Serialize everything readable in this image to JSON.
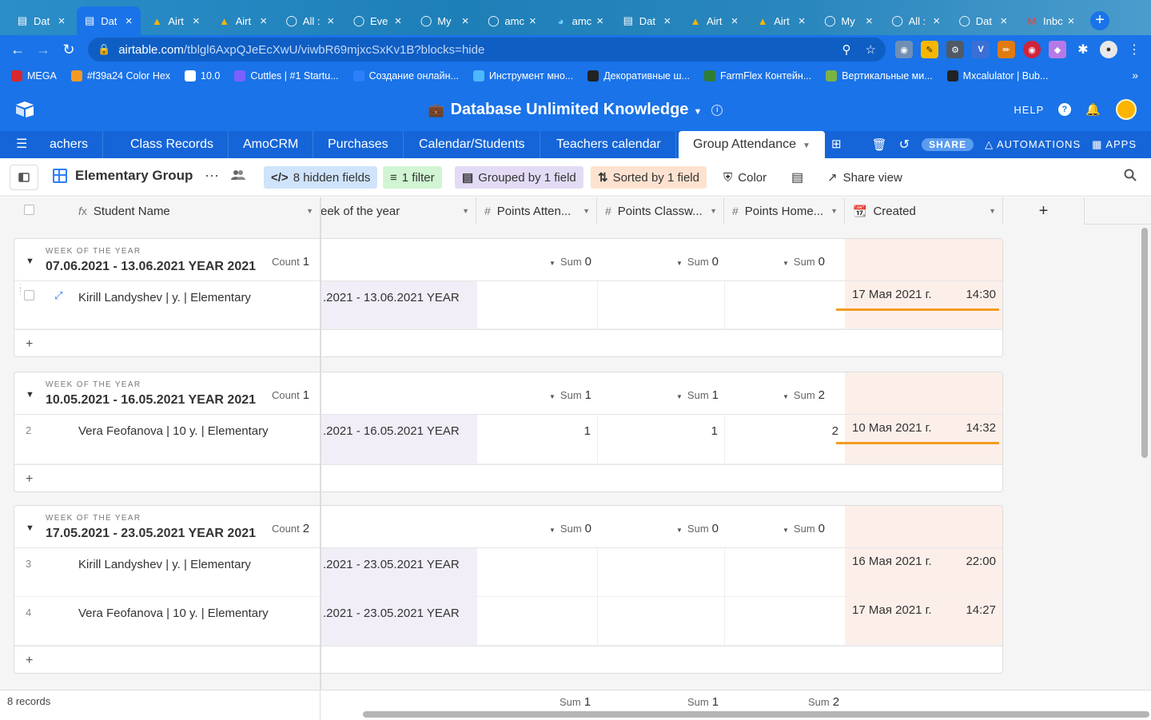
{
  "browser": {
    "tabs": [
      {
        "title": "Dat",
        "icon": "airtable-grid-icon",
        "active": false
      },
      {
        "title": "Dat",
        "icon": "airtable-grid-icon",
        "active": true
      },
      {
        "title": "Airt",
        "icon": "airtable-logo-icon",
        "active": false
      },
      {
        "title": "Airt",
        "icon": "airtable-logo-icon",
        "active": false
      },
      {
        "title": "All :",
        "icon": "loading-spinner-icon",
        "active": false
      },
      {
        "title": "Eve",
        "icon": "loading-spinner-icon",
        "active": false
      },
      {
        "title": "My",
        "icon": "loading-spinner-icon",
        "active": false
      },
      {
        "title": "amc",
        "icon": "loading-spinner-icon",
        "active": false
      },
      {
        "title": "amc",
        "icon": "amocrm-icon",
        "active": false
      },
      {
        "title": "Dat",
        "icon": "airtable-grid-icon",
        "active": false
      },
      {
        "title": "Airt",
        "icon": "airtable-logo-icon",
        "active": false
      },
      {
        "title": "Airt",
        "icon": "airtable-logo-icon",
        "active": false
      },
      {
        "title": "My",
        "icon": "loading-spinner-icon",
        "active": false
      },
      {
        "title": "All :",
        "icon": "loading-spinner-icon",
        "active": false
      },
      {
        "title": "Dat",
        "icon": "loading-spinner-icon",
        "active": false
      },
      {
        "title": "Inbc",
        "icon": "gmail-icon",
        "active": false
      }
    ],
    "url_host": "airtable.com",
    "url_path": "/tblgl6AxpQJeEcXwU/viwbR69mjxcSxKv1B?blocks=hide",
    "bookmarks": [
      {
        "label": "MEGA",
        "icon": "mega-icon",
        "color": "#d9272e"
      },
      {
        "label": "#f39a24 Color Hex",
        "icon": "color-hex-icon",
        "color": "#f39a24"
      },
      {
        "label": "10.0",
        "icon": "globe-icon",
        "color": "#ffffff"
      },
      {
        "label": "Cuttles | #1 Startu...",
        "icon": "cuttles-icon",
        "color": "#7b61ff"
      },
      {
        "label": "Создание онлайн...",
        "icon": "spinner-icon",
        "color": "#2d7ff9"
      },
      {
        "label": "Инструмент мно...",
        "icon": "tool-icon",
        "color": "#4db8ff"
      },
      {
        "label": "Декоративные ш...",
        "icon": "decor-icon",
        "color": "#222222"
      },
      {
        "label": "FarmFlex Контейн...",
        "icon": "farmflex-icon",
        "color": "#2e7d32"
      },
      {
        "label": "Вертикальные ми...",
        "icon": "leaf-icon",
        "color": "#7cb342"
      },
      {
        "label": "Mxcalulator | Bub...",
        "icon": "b-icon",
        "color": "#222222"
      }
    ]
  },
  "app": {
    "base_title": "Database Unlimited Knowledge",
    "help_label": "HELP",
    "tables": [
      {
        "label": "achers"
      },
      {
        "label": "Class Records"
      },
      {
        "label": "AmoCRM"
      },
      {
        "label": "Purchases"
      },
      {
        "label": "Calendar/Students"
      },
      {
        "label": "Teachers calendar"
      },
      {
        "label": "Group Attendance"
      }
    ],
    "share_label": "SHARE",
    "automations_label": "AUTOMATIONS",
    "apps_label": "APPS"
  },
  "viewbar": {
    "view_name": "Elementary Group",
    "hidden_fields": "8 hidden fields",
    "filter": "1 filter",
    "grouped": "Grouped by 1 field",
    "sorted": "Sorted by 1 field",
    "color": "Color",
    "share_view": "Share view",
    "colors": {
      "hidden": "#cfe3fb",
      "filter": "#d1f5d3",
      "grouped": "#e3dbf5",
      "sorted": "#fde2cf"
    }
  },
  "columns": {
    "student_name": "Student Name",
    "week": "eek of the year",
    "points_attendance": "Points Atten...",
    "points_classwork": "Points Classw...",
    "points_homework": "Points Home...",
    "created": "Created"
  },
  "grid": {
    "groups": [
      {
        "label": "WEEK OF THE YEAR",
        "value": "07.06.2021 - 13.06.2021 YEAR 2021",
        "count_label": "Count",
        "count": "1",
        "sum_label": "Sum",
        "sums": [
          "0",
          "0",
          "0"
        ],
        "rows": [
          {
            "num": "",
            "name": "Kirill Landyshev |  y. | Elementary",
            "week": ".2021 - 13.06.2021 YEAR",
            "p1": "",
            "p2": "",
            "p3": "",
            "date": "17 Мая 2021 г.",
            "time": "14:30"
          }
        ]
      },
      {
        "label": "WEEK OF THE YEAR",
        "value": "10.05.2021 - 16.05.2021 YEAR 2021",
        "count_label": "Count",
        "count": "1",
        "sum_label": "Sum",
        "sums": [
          "1",
          "1",
          "2"
        ],
        "rows": [
          {
            "num": "2",
            "name": "Vera Feofanova | 10 y. | Elementary",
            "week": ".2021 - 16.05.2021 YEAR",
            "p1": "1",
            "p2": "1",
            "p3": "2",
            "date": "10 Мая 2021 г.",
            "time": "14:32"
          }
        ]
      },
      {
        "label": "WEEK OF THE YEAR",
        "value": "17.05.2021 - 23.05.2021 YEAR 2021",
        "count_label": "Count",
        "count": "2",
        "sum_label": "Sum",
        "sums": [
          "0",
          "0",
          "0"
        ],
        "rows": [
          {
            "num": "3",
            "name": "Kirill Landyshev |  y. | Elementary",
            "week": ".2021 - 23.05.2021 YEAR",
            "p1": "",
            "p2": "",
            "p3": "",
            "date": "16 Мая 2021 г.",
            "time": "22:00"
          },
          {
            "num": "4",
            "name": "Vera Feofanova | 10 y. | Elementary",
            "week": ".2021 - 23.05.2021 YEAR",
            "p1": "",
            "p2": "",
            "p3": "",
            "date": "17 Мая 2021 г.",
            "time": "14:27"
          }
        ]
      }
    ],
    "add_symbol": "+"
  },
  "footer": {
    "records": "8 records",
    "sum_label": "Sum",
    "sums": [
      "1",
      "1",
      "2"
    ]
  }
}
